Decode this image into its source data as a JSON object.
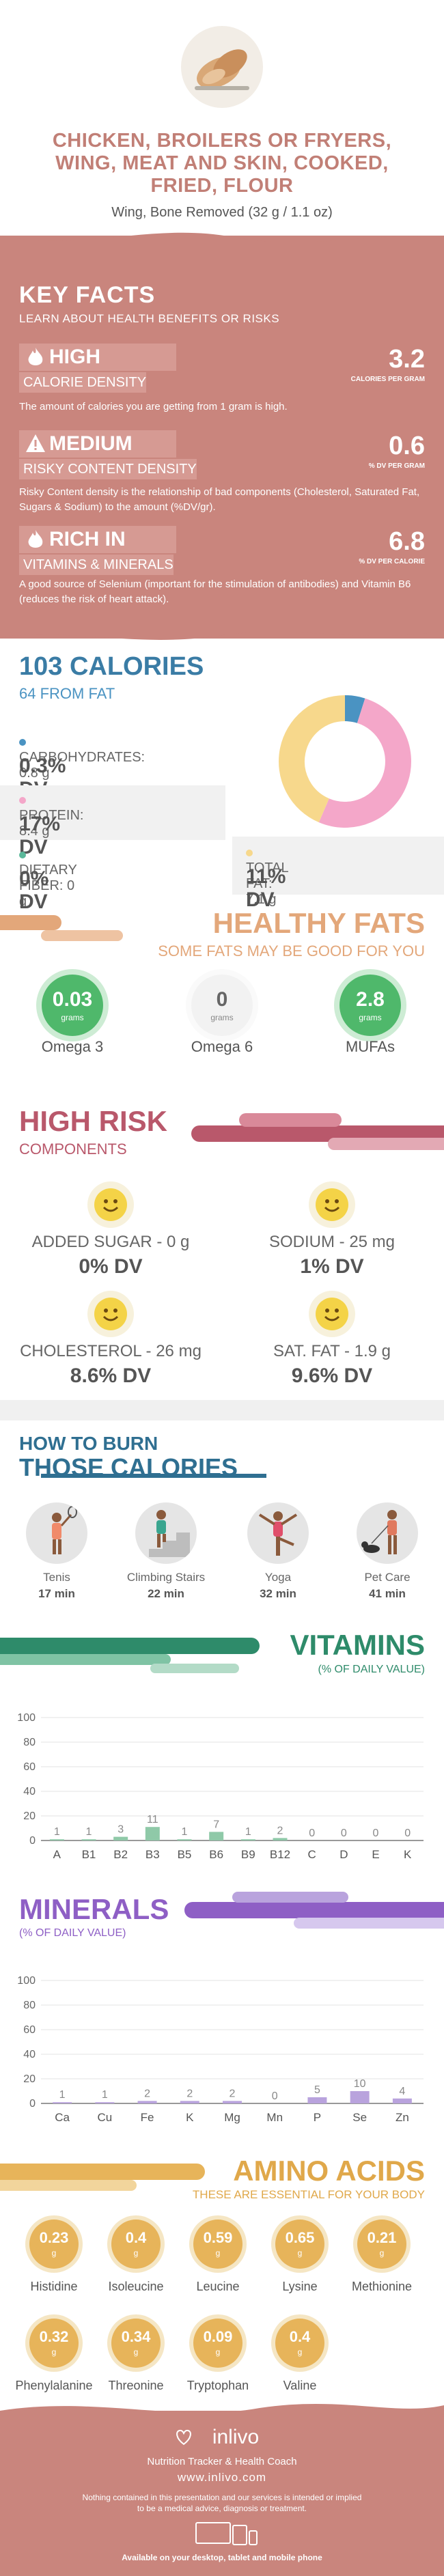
{
  "header": {
    "title_lines": [
      "CHICKEN, BROILERS OR FRYERS,",
      "WING, MEAT AND SKIN, COOKED,",
      "FRIED, FLOUR"
    ],
    "subtitle": "Wing, Bone Removed (32 g / 1.1 oz)"
  },
  "key_facts": {
    "heading": "KEY FACTS",
    "subheading": "LEARN ABOUT HEALTH BENEFITS OR RISKS",
    "items": [
      {
        "level": "HIGH",
        "category": "CALORIE DENSITY",
        "value": "3.2",
        "unit": "CALORIES PER GRAM",
        "desc": "The amount of calories you are getting from 1 gram is high.",
        "icon": "flame-icon"
      },
      {
        "level": "MEDIUM",
        "category": "RISKY CONTENT DENSITY",
        "value": "0.6",
        "unit": "% DV PER GRAM",
        "desc": "Risky Content density is the relationship of bad components (Cholesterol, Saturated Fat, Sugars & Sodium) to the amount (%DV/gr).",
        "icon": "warning-icon"
      },
      {
        "level": "RICH  IN",
        "category": "VITAMINS & MINERALS",
        "value": "6.8",
        "unit": "% DV PER CALORIE",
        "desc": "A good source of Selenium (important for the stimulation of antibodies) and Vitamin B6 (reduces the risk of heart attack).",
        "icon": "flame-icon"
      }
    ]
  },
  "calories": {
    "heading": "103 CALORIES",
    "sub": "64 FROM FAT",
    "nutrients": [
      {
        "label": "CARBOHYDRATES: 0.8 g",
        "dv": "0.3% DV",
        "color": "#4a93c2"
      },
      {
        "label": "PROTEIN: 8.4 g",
        "dv": "17% DV",
        "color": "#f4a7c9"
      },
      {
        "label": "DIETARY FIBER: 0 g",
        "dv": "0% DV",
        "color": "#5bb89a"
      },
      {
        "label": "TOTAL FAT: 7.1 g",
        "dv": "11% DV",
        "color": "#f7d88c"
      }
    ],
    "donut": [
      {
        "name": "Carbohydrates",
        "value": 0.8,
        "color": "#4a93c2"
      },
      {
        "name": "Protein",
        "value": 8.4,
        "color": "#f4a7c9"
      },
      {
        "name": "Total Fat",
        "value": 7.1,
        "color": "#f7d88c"
      }
    ]
  },
  "healthy_fats": {
    "heading": "HEALTHY FATS",
    "sub": "SOME FATS MAY BE GOOD FOR YOU",
    "items": [
      {
        "value": "0.03",
        "unit": "grams",
        "name": "Omega 3",
        "active": true
      },
      {
        "value": "0",
        "unit": "grams",
        "name": "Omega 6",
        "active": false
      },
      {
        "value": "2.8",
        "unit": "grams",
        "name": "MUFAs",
        "active": true
      }
    ]
  },
  "high_risk": {
    "heading": "HIGH RISK",
    "sub": "COMPONENTS",
    "items": [
      {
        "label": "ADDED SUGAR - 0 g",
        "dv": "0% DV"
      },
      {
        "label": "SODIUM - 25 mg",
        "dv": "1% DV"
      },
      {
        "label": "CHOLESTEROL - 26 mg",
        "dv": "8.6% DV"
      },
      {
        "label": "SAT. FAT - 1.9 g",
        "dv": "9.6% DV"
      }
    ]
  },
  "burn": {
    "heading1": "HOW TO BURN",
    "heading2": "THOSE CALORIES",
    "activities": [
      {
        "name": "Tenis",
        "minutes": "17 min",
        "icon": "tennis-player-icon"
      },
      {
        "name": "Climbing Stairs",
        "minutes": "22 min",
        "icon": "stairs-climber-icon"
      },
      {
        "name": "Yoga",
        "minutes": "32 min",
        "icon": "yoga-pose-icon"
      },
      {
        "name": "Pet Care",
        "minutes": "41 min",
        "icon": "dog-walker-icon"
      }
    ]
  },
  "vitamins": {
    "heading": "VITAMINS",
    "sub": "(% OF DAILY VALUE)",
    "chart_data": {
      "type": "bar",
      "categories": [
        "A",
        "B1",
        "B2",
        "B3",
        "B5",
        "B6",
        "B9",
        "B12",
        "C",
        "D",
        "E",
        "K"
      ],
      "values": [
        1,
        1,
        3,
        11,
        1,
        7,
        1,
        2,
        0,
        0,
        0,
        0
      ],
      "labels": [
        "1",
        "1",
        "3",
        "11",
        "1",
        "7",
        "1",
        "2",
        "0",
        "0",
        "0",
        "0"
      ],
      "yticks": [
        "0",
        "20",
        "40",
        "60",
        "80",
        "100"
      ],
      "ylim": [
        0,
        100
      ],
      "color": "#8fc9a8"
    }
  },
  "minerals": {
    "heading": "MINERALS",
    "sub": "(% OF DAILY VALUE)",
    "chart_data": {
      "type": "bar",
      "categories": [
        "Ca",
        "Cu",
        "Fe",
        "K",
        "Mg",
        "Mn",
        "P",
        "Se",
        "Zn"
      ],
      "values": [
        1,
        1,
        2,
        2,
        2,
        0,
        5,
        10,
        4
      ],
      "labels": [
        "1",
        "1",
        "2",
        "2",
        "2",
        "0",
        "5",
        "10",
        "4"
      ],
      "yticks": [
        "0",
        "20",
        "40",
        "60",
        "80",
        "100"
      ],
      "ylim": [
        0,
        100
      ],
      "color": "#b9a3dd"
    }
  },
  "amino": {
    "heading": "AMINO ACIDS",
    "sub": "THESE ARE ESSENTIAL FOR YOUR BODY",
    "unit": "g",
    "items": [
      {
        "value": "0.23",
        "name": "Histidine"
      },
      {
        "value": "0.4",
        "name": "Isoleucine"
      },
      {
        "value": "0.59",
        "name": "Leucine"
      },
      {
        "value": "0.65",
        "name": "Lysine"
      },
      {
        "value": "0.21",
        "name": "Methionine"
      },
      {
        "value": "0.32",
        "name": "Phenylalanine"
      },
      {
        "value": "0.34",
        "name": "Threonine"
      },
      {
        "value": "0.09",
        "name": "Tryptophan"
      },
      {
        "value": "0.4",
        "name": "Valine"
      }
    ]
  },
  "footer": {
    "brand": "inlivo",
    "tagline": "Nutrition Tracker & Health Coach",
    "url": "www.inlivo.com",
    "disclaimer1": "Nothing contained in this presentation and our services is intended or implied",
    "disclaimer2": "to be a medical advice, diagnosis or treatment.",
    "available": "Available on your desktop, tablet and mobile phone"
  }
}
